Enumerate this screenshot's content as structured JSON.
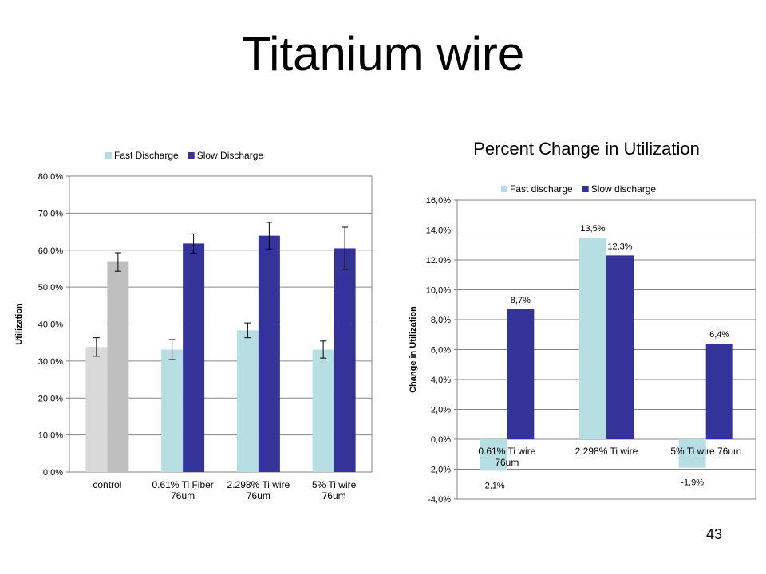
{
  "slide": {
    "title": "Titanium wire",
    "number": "43"
  },
  "chart_data": [
    {
      "type": "bar",
      "title": "",
      "xlabel": "",
      "ylabel": "Utilization",
      "ylim": [
        0,
        80
      ],
      "yticks": [
        "0,0%",
        "10,0%",
        "20,0%",
        "30,0%",
        "40,0%",
        "50,0%",
        "60,0%",
        "70,0%",
        "80,0%"
      ],
      "grid": true,
      "legend_position": "top",
      "categories": [
        [
          "control"
        ],
        [
          "0.61% Ti Fiber",
          "76um"
        ],
        [
          "2.298% Ti wire",
          "76um"
        ],
        [
          "5% Ti wire",
          "76um"
        ]
      ],
      "series": [
        {
          "name": "Fast Discharge",
          "color": "#B7DEE3",
          "point_colors": [
            "#D9D9D9",
            "#B7DEE3",
            "#B7DEE3",
            "#B7DEE3"
          ],
          "values": [
            33.8,
            33.1,
            38.3,
            33.1
          ],
          "errors": [
            2.5,
            2.7,
            2.0,
            2.3
          ]
        },
        {
          "name": "Slow Discharge",
          "color": "#333399",
          "point_colors": [
            "#BFBFBF",
            "#333399",
            "#333399",
            "#333399"
          ],
          "values": [
            56.8,
            61.8,
            63.9,
            60.5
          ],
          "errors": [
            2.5,
            2.6,
            3.6,
            5.7
          ]
        }
      ]
    },
    {
      "type": "bar",
      "title": "Percent Change in Utilization",
      "xlabel": "",
      "ylabel": "Change in Utilization",
      "ylim": [
        -4,
        16
      ],
      "yticks": [
        "-4,0%",
        "-2,0%",
        "0,0%",
        "2,0%",
        "4,0%",
        "6,0%",
        "8,0%",
        "10,0%",
        "12.0%",
        "14.0%",
        "16,0%"
      ],
      "grid": true,
      "legend_position": "top",
      "categories": [
        [
          "0.61% Ti wire",
          "76um"
        ],
        [
          "2.298% Ti wire"
        ],
        [
          "5% Ti wire 76um"
        ]
      ],
      "series": [
        {
          "name": "Fast discharge",
          "color": "#B7DEE3",
          "values": [
            -2.1,
            13.5,
            -1.9
          ],
          "labels": [
            "-2,1%",
            "13,5%",
            "-1,9%"
          ]
        },
        {
          "name": "Slow discharge",
          "color": "#333399",
          "values": [
            8.7,
            12.3,
            6.4
          ],
          "labels": [
            "8,7%",
            "12,3%",
            "6,4%"
          ]
        }
      ]
    }
  ]
}
